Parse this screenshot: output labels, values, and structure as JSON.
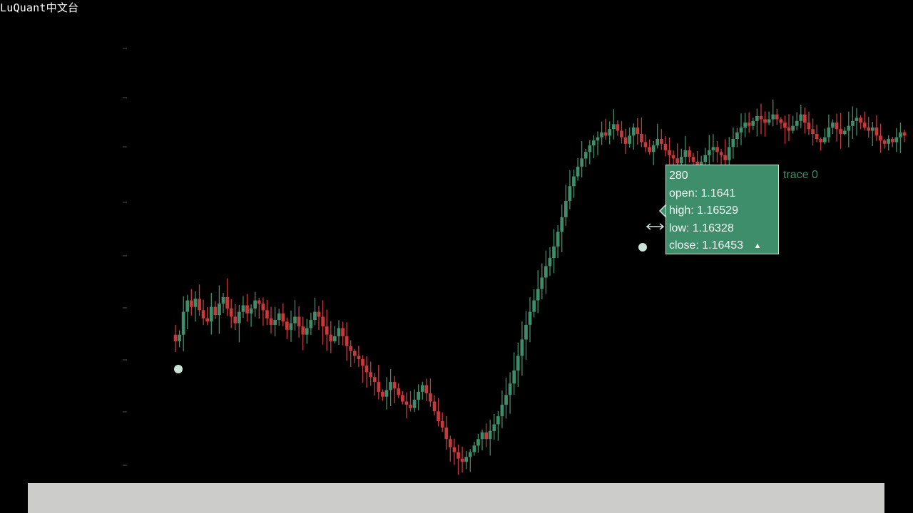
{
  "brand": {
    "title": "LuQuant中文台"
  },
  "trace_label": "trace 0",
  "colors": {
    "background": "#000000",
    "increasing": "#3f8e6b",
    "decreasing": "#c8393a",
    "tooltip_bg": "#3f8e6b",
    "tooltip_border": "#cfe5da",
    "bottom_bar": "#cccdcb"
  },
  "tooltip": {
    "index": "280",
    "open": "open: 1.1641",
    "high": "high: 1.16529",
    "low": "low: 1.16328",
    "close": "close: 1.16453",
    "arrow": "▲"
  },
  "chart_data": {
    "type": "candlestick",
    "grid": false,
    "legend": "none",
    "y_ticks": [
      "",
      "",
      "",
      "",
      "",
      "",
      "",
      "",
      ""
    ],
    "closes": [
      1.1527,
      1.1531,
      1.1545,
      1.1552,
      1.1548,
      1.1553,
      1.1546,
      1.1541,
      1.1539,
      1.1548,
      1.1543,
      1.155,
      1.1554,
      1.1547,
      1.1542,
      1.1538,
      1.1545,
      1.1549,
      1.1544,
      1.1547,
      1.1552,
      1.155,
      1.1546,
      1.1541,
      1.1537,
      1.154,
      1.1544,
      1.1539,
      1.1534,
      1.1538,
      1.1542,
      1.1536,
      1.1531,
      1.1535,
      1.154,
      1.1545,
      1.1542,
      1.1536,
      1.1531,
      1.1527,
      1.153,
      1.1535,
      1.153,
      1.1524,
      1.1521,
      1.1518,
      1.1516,
      1.1512,
      1.1508,
      1.1505,
      1.1502,
      1.1496,
      1.1493,
      1.1497,
      1.1502,
      1.1498,
      1.1494,
      1.149,
      1.1488,
      1.1486,
      1.1491,
      1.1496,
      1.15,
      1.1495,
      1.149,
      1.1484,
      1.1478,
      1.1474,
      1.1467,
      1.1462,
      1.1459,
      1.1455,
      1.1453,
      1.1456,
      1.1459,
      1.1463,
      1.1467,
      1.1471,
      1.1467,
      1.1472,
      1.1476,
      1.1481,
      1.1488,
      1.1494,
      1.1501,
      1.1509,
      1.1518,
      1.1528,
      1.1537,
      1.1545,
      1.1552,
      1.1559,
      1.1566,
      1.1573,
      1.1578,
      1.1585,
      1.1594,
      1.1603,
      1.1613,
      1.1622,
      1.1628,
      1.1634,
      1.1639,
      1.1643,
      1.1647,
      1.165,
      1.1652,
      1.1655,
      1.1653,
      1.1657,
      1.166,
      1.1656,
      1.1652,
      1.1648,
      1.1653,
      1.1658,
      1.1654,
      1.1649,
      1.1646,
      1.1643,
      1.1647,
      1.1651,
      1.1648,
      1.1644,
      1.1641,
      1.1639,
      1.1636,
      1.164,
      1.1644,
      1.164,
      1.1637,
      1.1634,
      1.1637,
      1.1641,
      1.1644,
      1.1646,
      1.1643,
      1.1641,
      1.1638,
      1.1646,
      1.1651,
      1.1655,
      1.1658,
      1.1661,
      1.1659,
      1.1662,
      1.1665,
      1.1663,
      1.1661,
      1.1663,
      1.1666,
      1.1663,
      1.1661,
      1.1658,
      1.1656,
      1.1659,
      1.1662,
      1.1666,
      1.1661,
      1.1657,
      1.1654,
      1.1651,
      1.1649,
      1.1652,
      1.1658,
      1.1661,
      1.1657,
      1.1654,
      1.1656,
      1.1659,
      1.1662,
      1.1664,
      1.1661,
      1.1658,
      1.1656,
      1.1658,
      1.1653,
      1.165,
      1.1648,
      1.1651,
      1.1649,
      1.1652,
      1.1655,
      1.1653
    ]
  }
}
